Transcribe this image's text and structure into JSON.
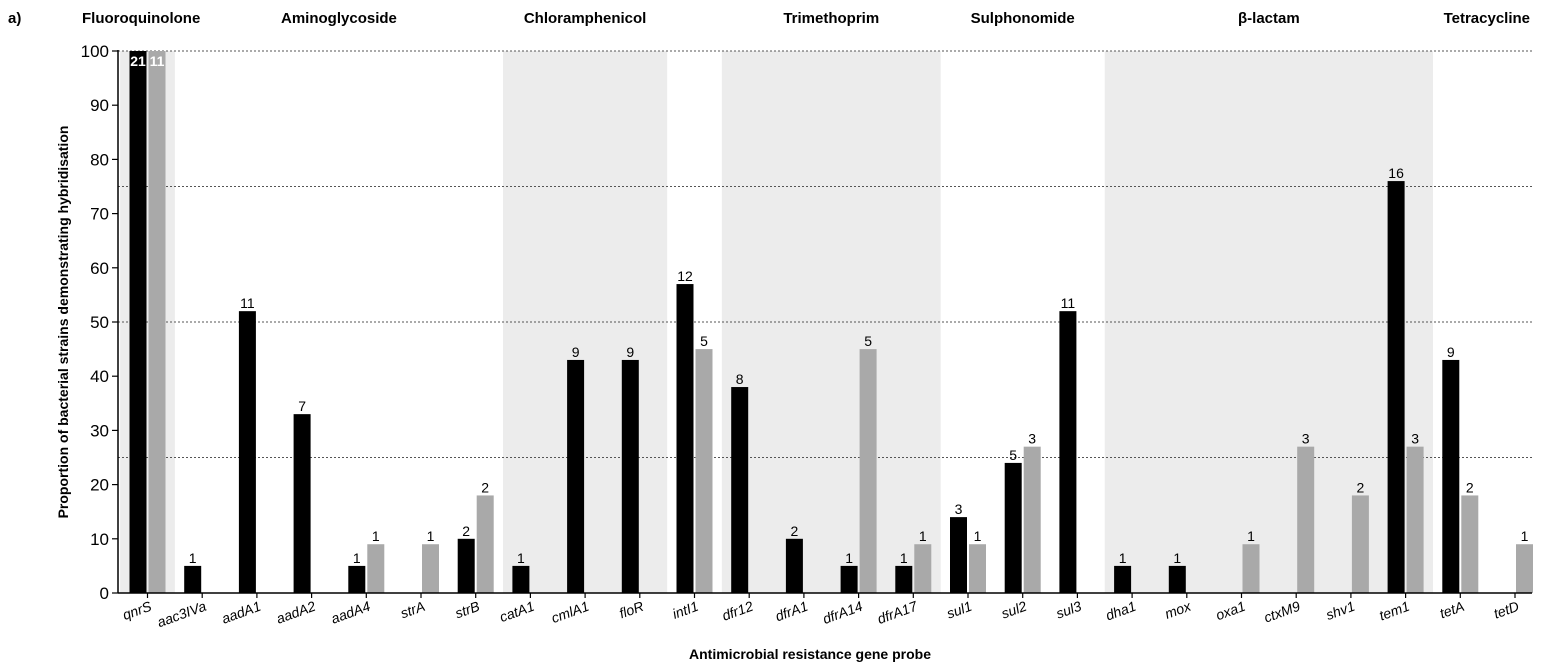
{
  "panel_label": "a)",
  "chart_data": {
    "type": "bar",
    "xlabel": "Antimicrobial resistance gene probe",
    "ylabel": "Proportion of bacterial strains demonstrating hybridisation",
    "ylim": [
      0,
      100
    ],
    "yticks": [
      0,
      10,
      20,
      30,
      40,
      50,
      60,
      70,
      80,
      90,
      100
    ],
    "gridlines": [
      25,
      50,
      75,
      100
    ],
    "categories": [
      "qnrS",
      "aac3IVa",
      "aadA1",
      "aadA2",
      "aadA4",
      "strA",
      "strB",
      "catA1",
      "cmlA1",
      "floR",
      "intI1",
      "dfr12",
      "dfrA1",
      "dfrA14",
      "dfrA17",
      "sul1",
      "sul2",
      "sul3",
      "dha1",
      "mox",
      "oxa1",
      "ctxM9",
      "shv1",
      "tem1",
      "tetA",
      "tetD"
    ],
    "series": [
      {
        "color": "#000000",
        "values": [
          100,
          5,
          52,
          33,
          5,
          null,
          10,
          5,
          43,
          43,
          57,
          38,
          10,
          5,
          5,
          14,
          24,
          52,
          5,
          5,
          null,
          null,
          null,
          76,
          43,
          null
        ],
        "labels": [
          "21",
          "1",
          "11",
          "7",
          "1",
          "",
          "2",
          "1",
          "9",
          "9",
          "12",
          "8",
          "2",
          "1",
          "1",
          "3",
          "5",
          "11",
          "1",
          "1",
          "",
          "",
          "",
          "16",
          "9",
          ""
        ]
      },
      {
        "color": "#a9a9a9",
        "values": [
          100,
          null,
          null,
          null,
          9,
          9,
          18,
          null,
          null,
          null,
          45,
          null,
          null,
          45,
          9,
          9,
          27,
          null,
          null,
          null,
          9,
          27,
          18,
          27,
          18,
          9
        ],
        "labels": [
          "11",
          "",
          "",
          "",
          "1",
          "1",
          "2",
          "",
          "",
          "",
          "5",
          "",
          "",
          "5",
          "1",
          "1",
          "3",
          "",
          "",
          "",
          "1",
          "3",
          "2",
          "3",
          "2",
          "1"
        ]
      }
    ],
    "groups": [
      {
        "label": "Fluoroquinolone",
        "start": 0,
        "end": 0,
        "shaded": true
      },
      {
        "label": "Aminoglycoside",
        "start": 1,
        "end": 6,
        "shaded": false
      },
      {
        "label": "Chloramphenicol",
        "start": 7,
        "end": 9,
        "shaded": true
      },
      {
        "label": "Trimethoprim",
        "start": 11,
        "end": 14,
        "shaded": true
      },
      {
        "label": "Sulphonomide",
        "start": 15,
        "end": 17,
        "shaded": false
      },
      {
        "label": "β-lactam",
        "start": 18,
        "end": 23,
        "shaded": true
      },
      {
        "label": "Tetracycline",
        "start": 24,
        "end": 25,
        "shaded": false
      }
    ]
  }
}
